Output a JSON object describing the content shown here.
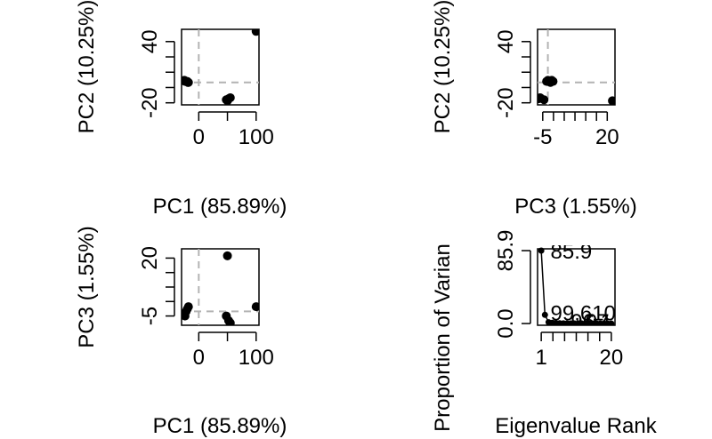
{
  "chart_data": [
    {
      "type": "scatter",
      "xlabel": "PC1 (85.89%)",
      "ylabel": "PC2 (10.25%)",
      "xlim": [
        -30,
        105
      ],
      "ylim": [
        -22,
        52
      ],
      "xticks": [
        0,
        100
      ],
      "xtick_labels": [
        "0",
        "100"
      ],
      "yticks": [
        -20,
        40
      ],
      "ytick_labels": [
        "-20",
        "40"
      ],
      "reference_lines": {
        "x": 0,
        "y": 0
      },
      "points": {
        "x": [
          -25,
          -24,
          -20,
          -19,
          -18,
          48,
          50,
          52,
          55,
          100
        ],
        "y": [
          2,
          1,
          1,
          0,
          0,
          -17,
          -18,
          -16,
          -15,
          50
        ]
      }
    },
    {
      "type": "scatter",
      "xlabel": "PC3 (1.55%)",
      "ylabel": "PC2 (10.25%)",
      "xlim": [
        -7,
        23
      ],
      "ylim": [
        -22,
        52
      ],
      "xticks": [
        -5,
        20
      ],
      "xtick_labels": [
        "-5",
        "20"
      ],
      "yticks": [
        -20,
        40
      ],
      "ytick_labels": [
        "-20",
        "40"
      ],
      "reference_lines": {
        "x": -3,
        "y": 0
      },
      "points": {
        "x": [
          -6,
          -6.5,
          -3.5,
          -3,
          -2.5,
          -2,
          -1.5,
          -1,
          -4.5,
          22
        ],
        "y": [
          -15,
          -16,
          1,
          2,
          1,
          0,
          2,
          1,
          -17,
          -18
        ]
      }
    },
    {
      "type": "scatter",
      "xlabel": "PC1 (85.89%)",
      "ylabel": "PC3 (1.55%)",
      "xlim": [
        -30,
        105
      ],
      "ylim": [
        -9,
        24
      ],
      "xticks": [
        0,
        100
      ],
      "xtick_labels": [
        "0",
        "100"
      ],
      "yticks": [
        -5,
        20
      ],
      "ytick_labels": [
        "-5",
        "20"
      ],
      "reference_lines": {
        "x": 0,
        "y": -3
      },
      "points": {
        "x": [
          -25,
          -24,
          -22,
          -20,
          -18,
          48,
          50,
          52,
          55,
          100
        ],
        "y": [
          -4,
          -5,
          -3,
          -2,
          -1,
          -5,
          21,
          -7,
          -8,
          -1
        ]
      }
    },
    {
      "type": "line",
      "xlabel": "Eigenvalue Rank",
      "ylabel": "Proportion of Varian",
      "xlim": [
        0,
        21
      ],
      "ylim": [
        -2,
        88
      ],
      "xticks": [
        1,
        20
      ],
      "xtick_labels": [
        "1",
        "20"
      ],
      "yticks": [
        0.0,
        85.9
      ],
      "ytick_labels": [
        "0.0",
        "85.9"
      ],
      "annotations": [
        {
          "text": "85.9",
          "x": 3.5,
          "y": 85.9
        },
        {
          "text": "99.610",
          "x": 3.5,
          "y": 13
        },
        {
          "text": "96.1",
          "x": 9,
          "y": 3
        },
        {
          "text": "97.6",
          "x": 13,
          "y": 3
        }
      ],
      "x": [
        1,
        2,
        3,
        4,
        5,
        6,
        7,
        8,
        9,
        10,
        11,
        12,
        13,
        14,
        15,
        16,
        17,
        18,
        19,
        20
      ],
      "values": [
        85.9,
        10.25,
        1.55,
        0.9,
        0.5,
        0.3,
        0.2,
        0.1,
        0.08,
        0.05,
        0.04,
        0.03,
        0.02,
        0.02,
        0.01,
        0.01,
        0.01,
        0.0,
        0.0,
        0.0
      ]
    }
  ]
}
